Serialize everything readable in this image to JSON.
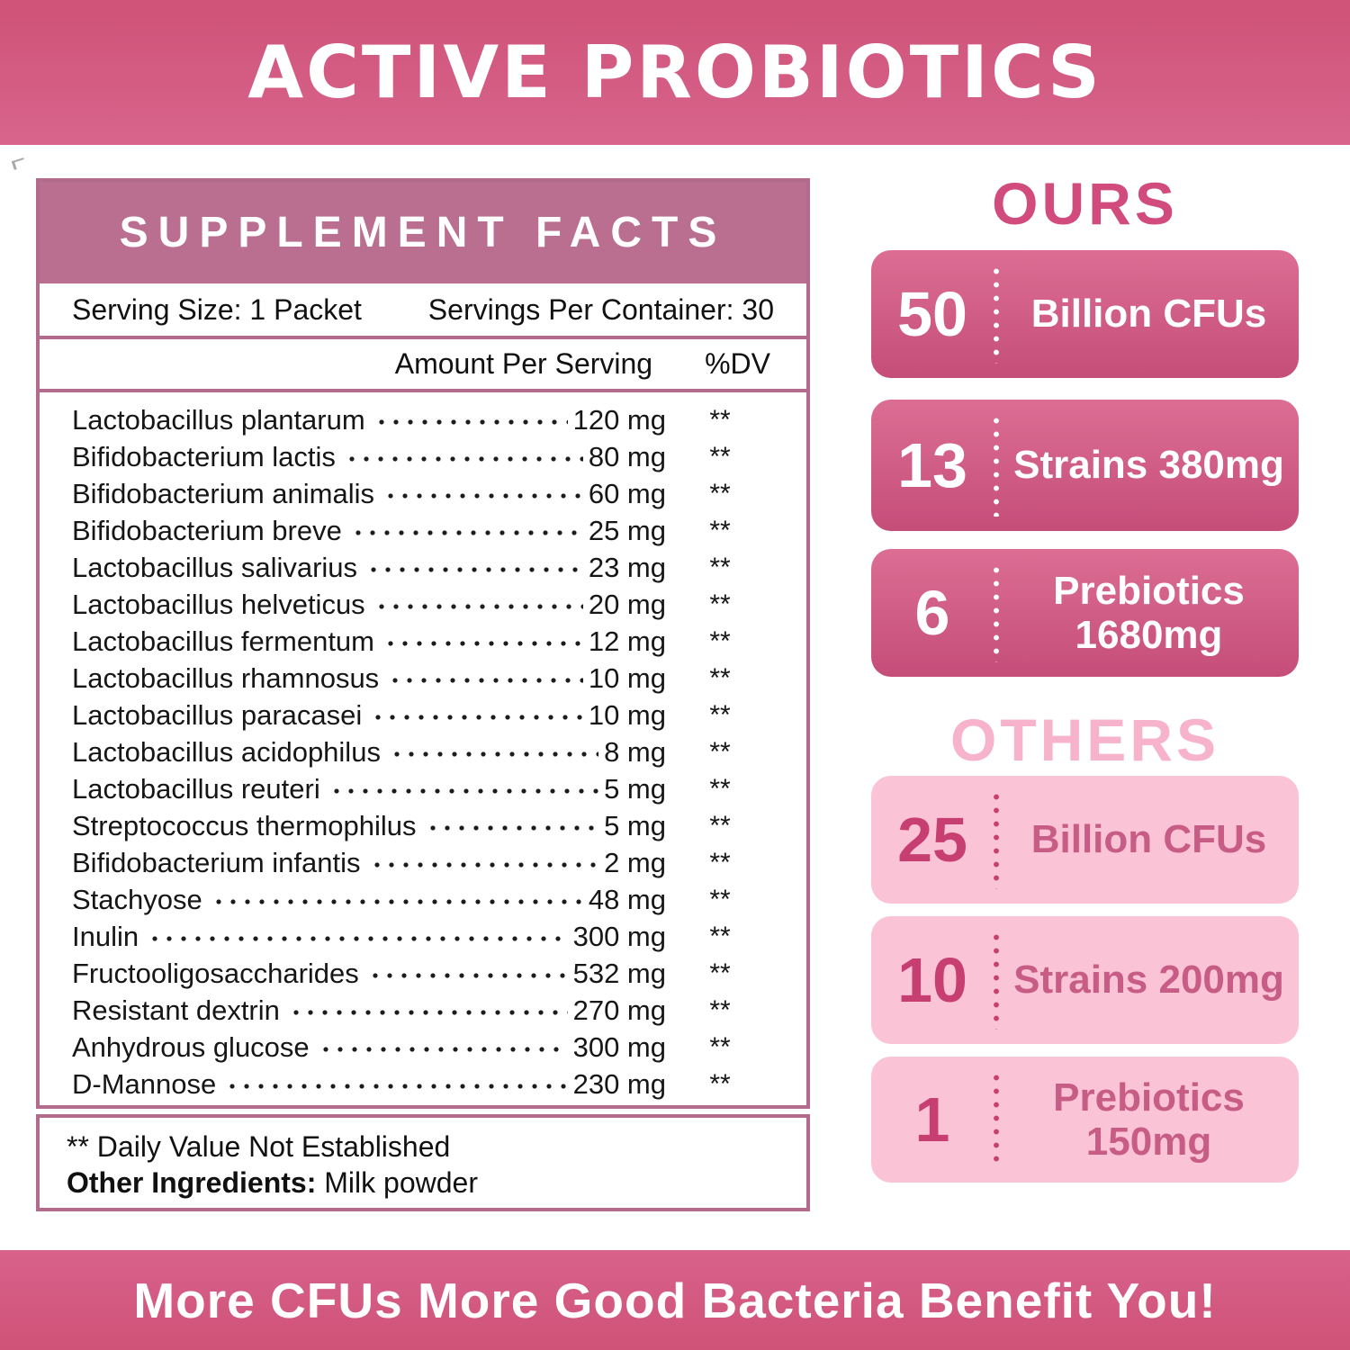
{
  "banners": {
    "top_title": "ACTIVE PROBIOTICS",
    "bottom_slogan": "More CFUs More Good Bacteria Benefit You!"
  },
  "supplement": {
    "title": "SUPPLEMENT FACTS",
    "serving_size": "Serving Size: 1 Packet",
    "servings_per_container": "Servings Per Container: 30",
    "amount_header": "Amount Per Serving",
    "dv_header": "%DV",
    "ingredients": [
      {
        "name": "Lactobacillus plantarum",
        "amount": "120 mg",
        "dv": "**"
      },
      {
        "name": "Bifidobacterium lactis",
        "amount": "80 mg",
        "dv": "**"
      },
      {
        "name": "Bifidobacterium animalis",
        "amount": "60 mg",
        "dv": "**"
      },
      {
        "name": "Bifidobacterium breve",
        "amount": "25 mg",
        "dv": "**"
      },
      {
        "name": "Lactobacillus salivarius",
        "amount": "23 mg",
        "dv": "**"
      },
      {
        "name": "Lactobacillus helveticus",
        "amount": "20 mg",
        "dv": "**"
      },
      {
        "name": "Lactobacillus fermentum",
        "amount": "12 mg",
        "dv": "**"
      },
      {
        "name": "Lactobacillus rhamnosus",
        "amount": "10 mg",
        "dv": "**"
      },
      {
        "name": "Lactobacillus paracasei",
        "amount": "10 mg",
        "dv": "**"
      },
      {
        "name": "Lactobacillus acidophilus",
        "amount": "8 mg",
        "dv": "**"
      },
      {
        "name": "Lactobacillus reuteri",
        "amount": "5 mg",
        "dv": "**"
      },
      {
        "name": "Streptococcus thermophilus",
        "amount": "5 mg",
        "dv": "**"
      },
      {
        "name": "Bifidobacterium infantis",
        "amount": "2 mg",
        "dv": "**"
      },
      {
        "name": "Stachyose",
        "amount": "48 mg",
        "dv": "**"
      },
      {
        "name": "Inulin",
        "amount": "300 mg",
        "dv": "**"
      },
      {
        "name": "Fructooligosaccharides",
        "amount": "532 mg",
        "dv": "**"
      },
      {
        "name": "Resistant dextrin",
        "amount": "270 mg",
        "dv": "**"
      },
      {
        "name": "Anhydrous glucose",
        "amount": "300 mg",
        "dv": "**"
      },
      {
        "name": "D-Mannose",
        "amount": "230 mg",
        "dv": "**"
      }
    ],
    "footnote": "** Daily Value Not Established",
    "other_ingredients_label": "Other Ingredients:",
    "other_ingredients_value": "Milk powder"
  },
  "comparison": {
    "ours": {
      "heading": "OURS",
      "boxes": [
        {
          "number": "50",
          "lines": [
            "Billion CFUs"
          ]
        },
        {
          "number": "13",
          "lines": [
            "Strains 380mg"
          ]
        },
        {
          "number": "6",
          "lines": [
            "Prebiotics",
            "1680mg"
          ]
        }
      ]
    },
    "others": {
      "heading": "OTHERS",
      "boxes": [
        {
          "number": "25",
          "lines": [
            "Billion CFUs"
          ]
        },
        {
          "number": "10",
          "lines": [
            "Strains 200mg"
          ]
        },
        {
          "number": "1",
          "lines": [
            "Prebiotics",
            "150mg"
          ]
        }
      ]
    }
  },
  "colors": {
    "banner_pink": "#d4587f",
    "panel_border_mauve": "#b26b8d",
    "panel_band_mauve": "#ba6f90",
    "ours_heading_pink": "#d14b7c",
    "ours_box_gradient_top": "#dc6d93",
    "ours_box_gradient_bottom": "#c54e79",
    "others_heading_pink": "#f6b3cb",
    "others_box_pink": "#fac3d6",
    "others_text_pink": "#c73e70",
    "ingredient_text": "#161616"
  }
}
